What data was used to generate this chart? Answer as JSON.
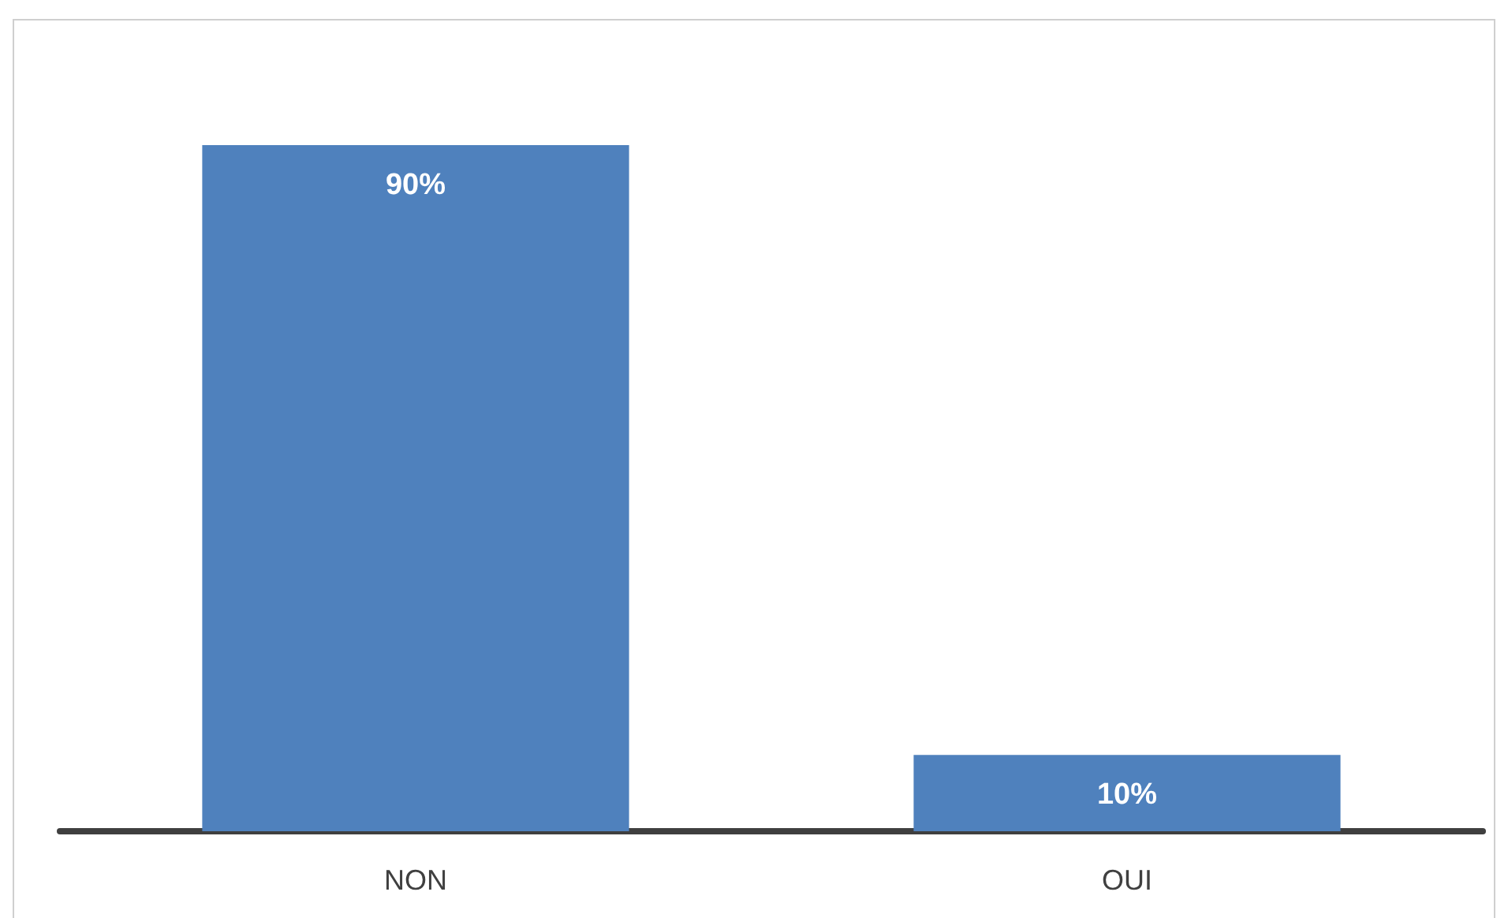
{
  "chart_data": {
    "type": "bar",
    "categories": [
      "NON",
      "OUI"
    ],
    "values": [
      90,
      10
    ],
    "value_labels": [
      "90%",
      "10%"
    ],
    "color": "#4f81bd",
    "tick_labels": "x",
    "grid": false
  }
}
